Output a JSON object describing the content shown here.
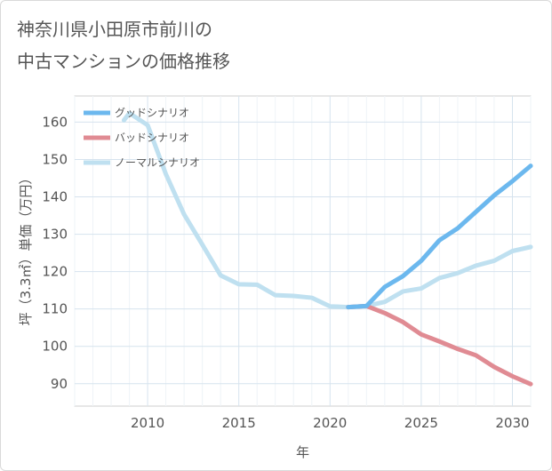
{
  "title_lines": [
    "神奈川県小田原市前川の",
    "中古マンションの価格推移"
  ],
  "chart_data": {
    "type": "line",
    "xlabel": "年",
    "ylabel": "坪（3.3㎡）単価（万円）",
    "xlim": [
      2006,
      2031
    ],
    "ylim": [
      84,
      167
    ],
    "xticks": [
      2010,
      2015,
      2020,
      2025,
      2030
    ],
    "yticks": [
      90,
      100,
      110,
      120,
      130,
      140,
      150,
      160
    ],
    "legend_position": "top-left",
    "series": [
      {
        "name": "グッドシナリオ",
        "color": "#6cb8ee",
        "x": [
          2021,
          2022,
          2023,
          2024,
          2025,
          2026,
          2027,
          2028,
          2029,
          2030,
          2031
        ],
        "y": [
          110.5,
          110.8,
          115.9,
          118.8,
          122.9,
          128.4,
          131.6,
          136.0,
          140.4,
          144.2,
          148.3
        ]
      },
      {
        "name": "バッドシナリオ",
        "color": "#e08b93",
        "x": [
          2021,
          2022,
          2023,
          2024,
          2025,
          2026,
          2027,
          2028,
          2029,
          2030,
          2031
        ],
        "y": [
          110.5,
          110.8,
          108.9,
          106.5,
          103.2,
          101.3,
          99.3,
          97.6,
          94.5,
          92.0,
          89.9
        ]
      },
      {
        "name": "ノーマルシナリオ",
        "color": "#bfe0f0",
        "x": [
          2008.7,
          2009,
          2010,
          2011,
          2012,
          2013,
          2014,
          2015,
          2016,
          2017,
          2018,
          2019,
          2020,
          2021,
          2022,
          2023,
          2024,
          2025,
          2026,
          2027,
          2028,
          2029,
          2030,
          2031
        ],
        "y": [
          160.5,
          162.4,
          159.2,
          146.1,
          135.3,
          127.2,
          119.0,
          116.6,
          116.5,
          113.7,
          113.5,
          113.0,
          110.7,
          110.5,
          110.8,
          111.9,
          114.7,
          115.5,
          118.3,
          119.6,
          121.6,
          122.9,
          125.5,
          126.6
        ]
      }
    ]
  }
}
